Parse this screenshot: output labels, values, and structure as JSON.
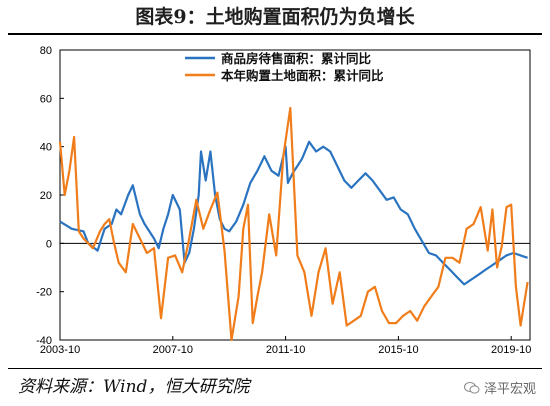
{
  "header": {
    "title": "图表9：土地购置面积仍为负增长"
  },
  "footer": {
    "source": "资料来源：Wind，恒大研究院",
    "watermark": "泽平宏观"
  },
  "chart_data": {
    "type": "line",
    "title": "图表9：土地购置面积仍为负增长",
    "xlabel": "",
    "ylabel": "",
    "ylim": [
      -40,
      80
    ],
    "yticks": [
      80,
      60,
      40,
      20,
      0,
      -20,
      -40
    ],
    "xlim": [
      "2003-10",
      "2020-06"
    ],
    "xticks": [
      "2003-10",
      "2007-10",
      "2011-10",
      "2015-10",
      "2019-10"
    ],
    "grid": false,
    "legend": "top-right",
    "series": [
      {
        "name": "商品房待售面积：累计同比",
        "color": "#2a73c0",
        "x": [
          "2003-10",
          "2004-03",
          "2004-08",
          "2004-10",
          "2005-02",
          "2005-05",
          "2005-08",
          "2005-10",
          "2005-12",
          "2006-03",
          "2006-05",
          "2006-08",
          "2006-10",
          "2007-02",
          "2007-04",
          "2007-06",
          "2007-08",
          "2007-10",
          "2008-01",
          "2008-03",
          "2008-05",
          "2008-07",
          "2008-09",
          "2008-10",
          "2008-12",
          "2009-02",
          "2009-04",
          "2009-06",
          "2009-08",
          "2009-10",
          "2010-01",
          "2010-04",
          "2010-07",
          "2010-10",
          "2011-01",
          "2011-04",
          "2011-07",
          "2011-10",
          "2011-11",
          "2012-01",
          "2012-03",
          "2012-05",
          "2012-08",
          "2012-11",
          "2013-02",
          "2013-05",
          "2013-08",
          "2013-11",
          "2014-02",
          "2014-05",
          "2014-08",
          "2014-11",
          "2015-02",
          "2015-05",
          "2015-08",
          "2015-11",
          "2016-02",
          "2016-05",
          "2016-08",
          "2016-11",
          "2017-02",
          "2017-05",
          "2017-08",
          "2017-11",
          "2018-02",
          "2018-05",
          "2018-08",
          "2018-11",
          "2019-02",
          "2019-05",
          "2019-08",
          "2019-11",
          "2020-02",
          "2020-05"
        ],
        "values": [
          9,
          6,
          5,
          0,
          -3,
          6,
          8,
          14,
          12,
          20,
          24,
          12,
          8,
          2,
          -2,
          6,
          12,
          20,
          14,
          -8,
          -4,
          6,
          20,
          38,
          26,
          38,
          20,
          10,
          6,
          5,
          9,
          16,
          25,
          30,
          36,
          30,
          28,
          40,
          25,
          29,
          32,
          35,
          42,
          38,
          40,
          38,
          32,
          26,
          23,
          26,
          29,
          26,
          22,
          18,
          19,
          14,
          12,
          6,
          1,
          -4,
          -5,
          -8,
          -11,
          -14,
          -17,
          -15,
          -13,
          -11,
          -9,
          -7,
          -5,
          -4,
          -5,
          -6
        ]
      },
      {
        "name": "本年购置土地面积：累计同比",
        "color": "#f07d1a",
        "x": [
          "2003-10",
          "2003-12",
          "2004-02",
          "2004-04",
          "2004-06",
          "2004-08",
          "2004-10",
          "2004-12",
          "2005-03",
          "2005-05",
          "2005-07",
          "2005-09",
          "2005-11",
          "2006-02",
          "2006-05",
          "2006-08",
          "2006-11",
          "2007-02",
          "2007-05",
          "2007-08",
          "2007-11",
          "2008-02",
          "2008-05",
          "2008-08",
          "2008-11",
          "2009-02",
          "2009-05",
          "2009-08",
          "2009-11",
          "2010-02",
          "2010-04",
          "2010-06",
          "2010-08",
          "2010-10",
          "2010-12",
          "2011-03",
          "2011-06",
          "2011-09",
          "2011-12",
          "2012-03",
          "2012-06",
          "2012-09",
          "2012-12",
          "2013-03",
          "2013-06",
          "2013-09",
          "2013-12",
          "2014-03",
          "2014-06",
          "2014-09",
          "2014-12",
          "2015-03",
          "2015-06",
          "2015-09",
          "2015-12",
          "2016-03",
          "2016-06",
          "2016-09",
          "2016-12",
          "2017-03",
          "2017-06",
          "2017-09",
          "2017-12",
          "2018-03",
          "2018-06",
          "2018-09",
          "2018-12",
          "2019-02",
          "2019-04",
          "2019-06",
          "2019-08",
          "2019-10",
          "2019-12",
          "2020-02",
          "2020-05"
        ],
        "values": [
          42,
          20,
          30,
          44,
          5,
          2,
          0,
          -2,
          5,
          8,
          10,
          0,
          -8,
          -12,
          8,
          2,
          -4,
          -2,
          -31,
          -6,
          -5,
          -12,
          2,
          18,
          6,
          14,
          21,
          -3,
          -40,
          -22,
          6,
          16,
          -33,
          -22,
          -12,
          12,
          -5,
          36,
          56,
          -5,
          -12,
          -30,
          -12,
          -2,
          -25,
          -12,
          -34,
          -32,
          -30,
          -20,
          -18,
          -28,
          -33,
          -33,
          -30,
          -28,
          -32,
          -26,
          -22,
          -18,
          -6,
          -6,
          -8,
          6,
          8,
          15,
          -3,
          14,
          -10,
          -1,
          15,
          16,
          -18,
          -34,
          -16
        ]
      }
    ]
  }
}
